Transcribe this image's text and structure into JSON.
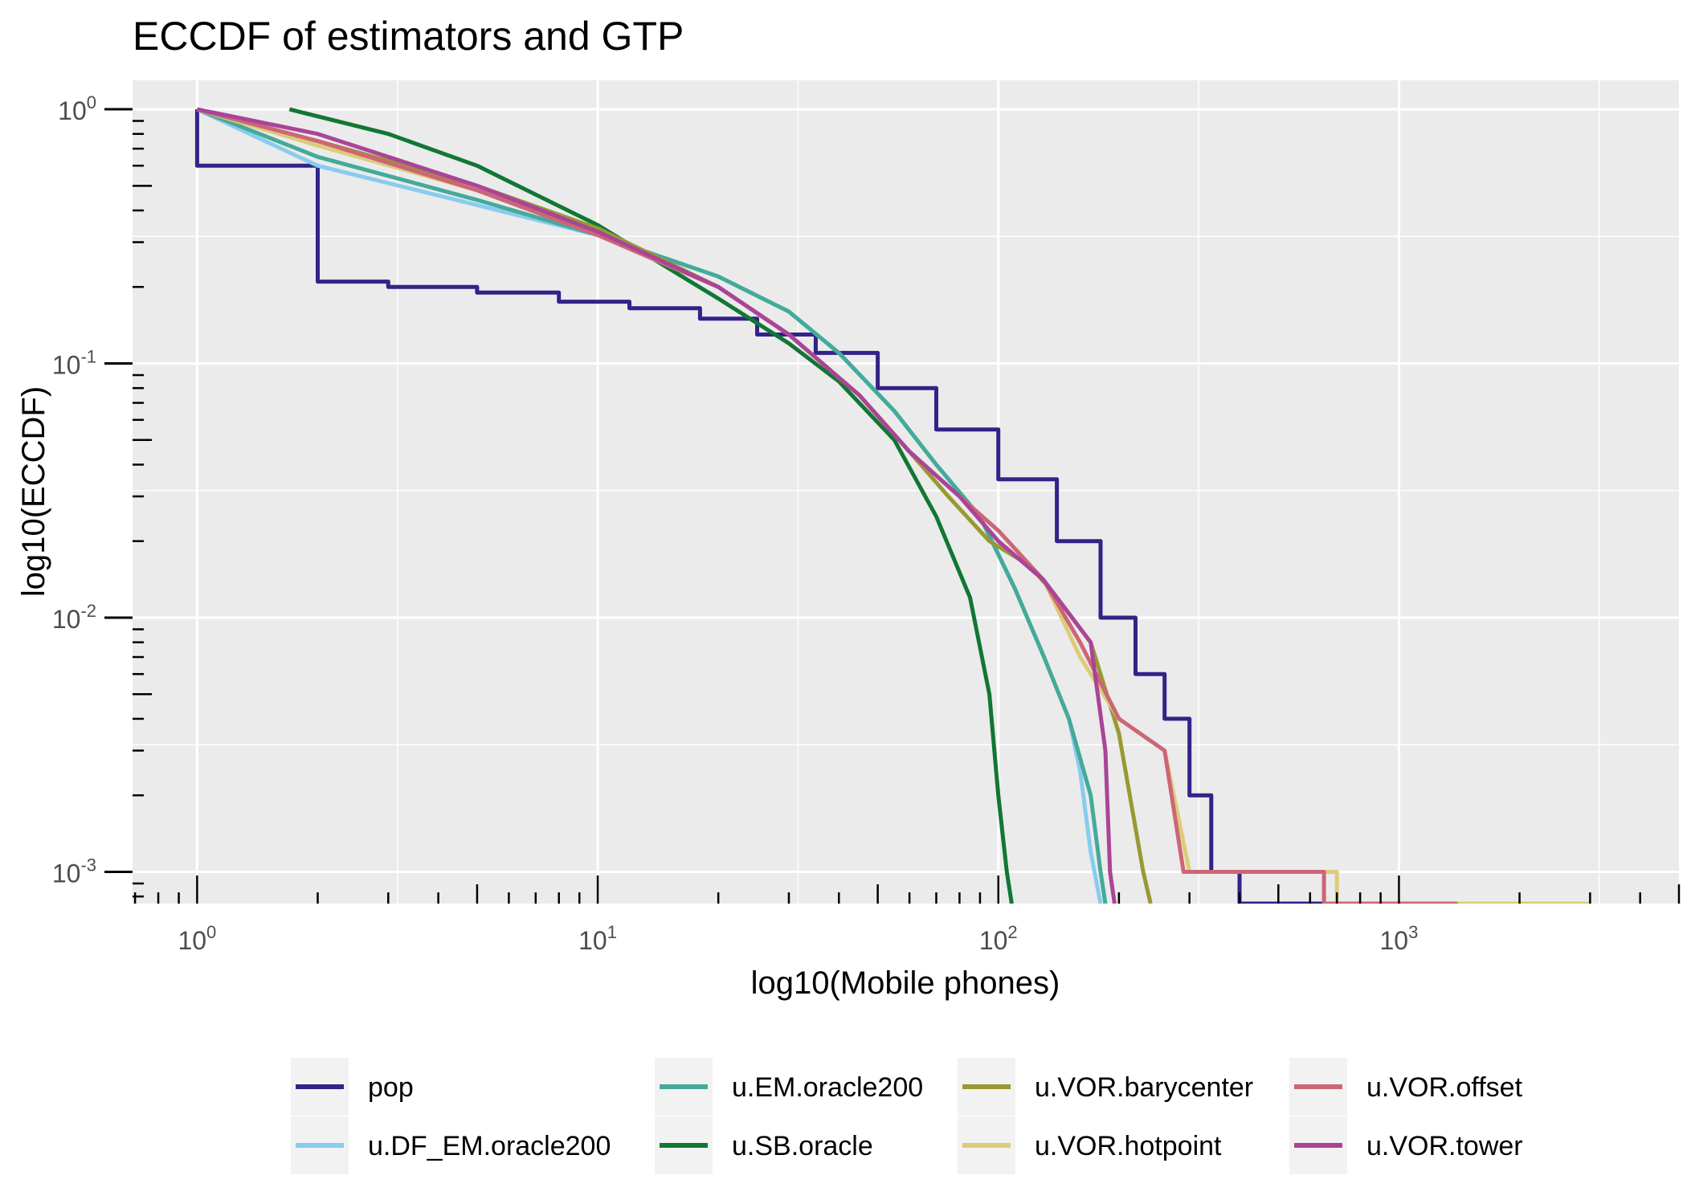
{
  "chart_data": {
    "type": "line",
    "title": "ECCDF of estimators and GTP",
    "xlabel": "log10(Mobile phones)",
    "ylabel": "log10(ECCDF)",
    "x_scale": "log10",
    "y_scale": "log10",
    "xlim": [
      0.69,
      5000
    ],
    "ylim": [
      0.00075,
      1.3
    ],
    "x_ticks": [
      {
        "value": 1,
        "base": "10",
        "exp": "0"
      },
      {
        "value": 10,
        "base": "10",
        "exp": "1"
      },
      {
        "value": 100,
        "base": "10",
        "exp": "2"
      },
      {
        "value": 1000,
        "base": "10",
        "exp": "3"
      }
    ],
    "y_ticks": [
      {
        "value": 1,
        "base": "10",
        "exp": "0"
      },
      {
        "value": 0.1,
        "base": "10",
        "exp": "-1"
      },
      {
        "value": 0.01,
        "base": "10",
        "exp": "-2"
      },
      {
        "value": 0.001,
        "base": "10",
        "exp": "-3"
      }
    ],
    "grid": true,
    "background": "#EBEBEB",
    "legend_position": "bottom",
    "series": [
      {
        "name": "pop",
        "color": "#332288",
        "step": true,
        "points": [
          [
            1,
            1
          ],
          [
            1,
            0.6
          ],
          [
            2,
            0.6
          ],
          [
            2,
            0.21
          ],
          [
            3,
            0.2
          ],
          [
            4,
            0.2
          ],
          [
            5,
            0.19
          ],
          [
            8,
            0.175
          ],
          [
            12,
            0.165
          ],
          [
            18,
            0.15
          ],
          [
            25,
            0.13
          ],
          [
            35,
            0.11
          ],
          [
            50,
            0.08
          ],
          [
            70,
            0.055
          ],
          [
            100,
            0.035
          ],
          [
            140,
            0.02
          ],
          [
            180,
            0.01
          ],
          [
            220,
            0.006
          ],
          [
            260,
            0.004
          ],
          [
            300,
            0.002
          ],
          [
            340,
            0.001
          ],
          [
            400,
            0.001
          ],
          [
            400,
            0.00075
          ],
          [
            700,
            0.00075
          ]
        ]
      },
      {
        "name": "u.DF_EM.oracle200",
        "color": "#88CCEE",
        "step": false,
        "points": [
          [
            1,
            1
          ],
          [
            2,
            0.6
          ],
          [
            5,
            0.42
          ],
          [
            10,
            0.32
          ],
          [
            20,
            0.22
          ],
          [
            30,
            0.16
          ],
          [
            40,
            0.11
          ],
          [
            55,
            0.065
          ],
          [
            70,
            0.04
          ],
          [
            90,
            0.025
          ],
          [
            110,
            0.013
          ],
          [
            130,
            0.007
          ],
          [
            150,
            0.004
          ],
          [
            160,
            0.0025
          ],
          [
            170,
            0.0012
          ],
          [
            180,
            0.00075
          ]
        ]
      },
      {
        "name": "u.EM.oracle200",
        "color": "#44AA99",
        "step": false,
        "points": [
          [
            1,
            1
          ],
          [
            2,
            0.65
          ],
          [
            5,
            0.44
          ],
          [
            10,
            0.32
          ],
          [
            20,
            0.22
          ],
          [
            30,
            0.16
          ],
          [
            40,
            0.11
          ],
          [
            55,
            0.065
          ],
          [
            70,
            0.04
          ],
          [
            90,
            0.025
          ],
          [
            110,
            0.013
          ],
          [
            130,
            0.007
          ],
          [
            150,
            0.004
          ],
          [
            170,
            0.002
          ],
          [
            180,
            0.001
          ],
          [
            185,
            0.00075
          ]
        ]
      },
      {
        "name": "u.SB.oracle",
        "color": "#117733",
        "step": false,
        "points": [
          [
            1.7,
            1
          ],
          [
            3,
            0.8
          ],
          [
            5,
            0.6
          ],
          [
            10,
            0.35
          ],
          [
            20,
            0.18
          ],
          [
            30,
            0.12
          ],
          [
            40,
            0.085
          ],
          [
            55,
            0.05
          ],
          [
            70,
            0.025
          ],
          [
            85,
            0.012
          ],
          [
            95,
            0.005
          ],
          [
            100,
            0.002
          ],
          [
            105,
            0.001
          ],
          [
            108,
            0.00075
          ]
        ]
      },
      {
        "name": "u.VOR.barycenter",
        "color": "#999933",
        "step": false,
        "points": [
          [
            1,
            1
          ],
          [
            2,
            0.75
          ],
          [
            5,
            0.5
          ],
          [
            10,
            0.34
          ],
          [
            20,
            0.2
          ],
          [
            30,
            0.13
          ],
          [
            45,
            0.075
          ],
          [
            60,
            0.045
          ],
          [
            75,
            0.03
          ],
          [
            95,
            0.02
          ],
          [
            120,
            0.016
          ],
          [
            140,
            0.012
          ],
          [
            170,
            0.008
          ],
          [
            200,
            0.0035
          ],
          [
            230,
            0.001
          ],
          [
            240,
            0.00075
          ]
        ]
      },
      {
        "name": "u.VOR.hotpoint",
        "color": "#DDCC77",
        "step": false,
        "points": [
          [
            1,
            1
          ],
          [
            2,
            0.72
          ],
          [
            5,
            0.48
          ],
          [
            10,
            0.32
          ],
          [
            20,
            0.2
          ],
          [
            30,
            0.13
          ],
          [
            45,
            0.075
          ],
          [
            60,
            0.045
          ],
          [
            80,
            0.03
          ],
          [
            100,
            0.022
          ],
          [
            130,
            0.014
          ],
          [
            160,
            0.007
          ],
          [
            200,
            0.004
          ],
          [
            260,
            0.003
          ],
          [
            300,
            0.001
          ],
          [
            700,
            0.001
          ],
          [
            700,
            0.00075
          ],
          [
            3000,
            0.00075
          ]
        ]
      },
      {
        "name": "u.VOR.offset",
        "color": "#CC6677",
        "step": false,
        "points": [
          [
            1,
            1
          ],
          [
            2,
            0.75
          ],
          [
            5,
            0.48
          ],
          [
            10,
            0.32
          ],
          [
            20,
            0.2
          ],
          [
            30,
            0.13
          ],
          [
            45,
            0.075
          ],
          [
            60,
            0.045
          ],
          [
            80,
            0.03
          ],
          [
            100,
            0.022
          ],
          [
            130,
            0.014
          ],
          [
            160,
            0.008
          ],
          [
            200,
            0.004
          ],
          [
            260,
            0.003
          ],
          [
            290,
            0.001
          ],
          [
            650,
            0.001
          ],
          [
            650,
            0.00075
          ],
          [
            1400,
            0.00075
          ]
        ]
      },
      {
        "name": "u.VOR.tower",
        "color": "#AA4499",
        "step": false,
        "points": [
          [
            1,
            1
          ],
          [
            2,
            0.8
          ],
          [
            5,
            0.5
          ],
          [
            10,
            0.33
          ],
          [
            20,
            0.2
          ],
          [
            30,
            0.13
          ],
          [
            45,
            0.075
          ],
          [
            60,
            0.045
          ],
          [
            80,
            0.03
          ],
          [
            100,
            0.02
          ],
          [
            130,
            0.014
          ],
          [
            170,
            0.008
          ],
          [
            185,
            0.003
          ],
          [
            190,
            0.001
          ],
          [
            195,
            0.00075
          ]
        ]
      }
    ]
  }
}
